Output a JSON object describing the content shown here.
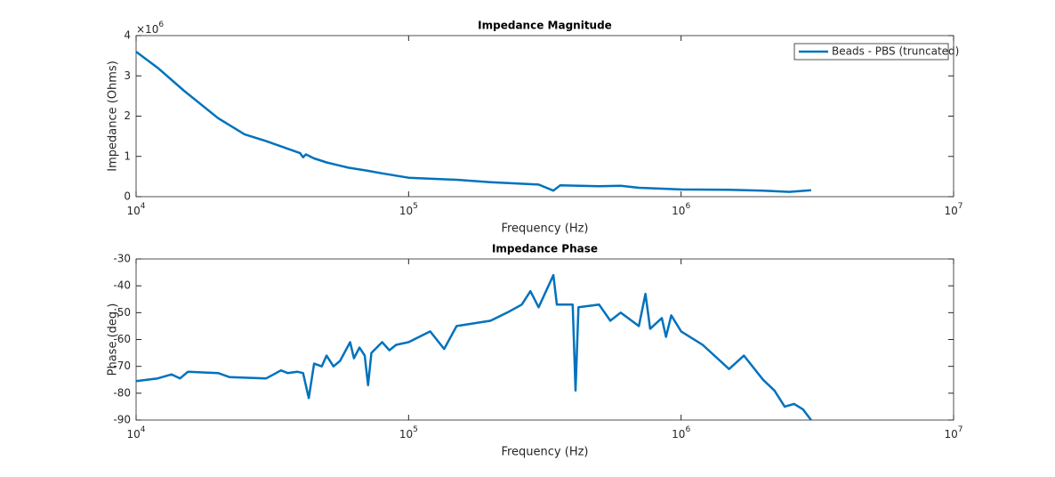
{
  "chart_data": [
    {
      "type": "line",
      "title": "Impedance Magnitude",
      "xlabel": "Frequency (Hz)",
      "ylabel": "Impedance (Ohms)",
      "y_exponent_label": "×10^6",
      "xscale": "log",
      "legend": "northeast",
      "x": [
        10000,
        12000,
        15000,
        20000,
        25000,
        30000,
        35000,
        40000,
        41000,
        42000,
        45000,
        50000,
        60000,
        70000,
        80000,
        100000,
        150000,
        200000,
        300000,
        340000,
        360000,
        500000,
        600000,
        700000,
        1000000,
        1500000,
        2000000,
        2500000,
        3000000
      ],
      "series": [
        {
          "name": "Beads - PBS (truncated)",
          "color": "#0072bd",
          "values": [
            3600000,
            3200000,
            2630000,
            1950000,
            1550000,
            1380000,
            1220000,
            1080000,
            980000,
            1050000,
            950000,
            850000,
            720000,
            650000,
            580000,
            470000,
            420000,
            360000,
            300000,
            150000,
            280000,
            260000,
            270000,
            220000,
            180000,
            170000,
            150000,
            120000,
            160000
          ]
        }
      ],
      "xlim": [
        10000,
        10000000
      ],
      "xticks": [
        {
          "value": 10000,
          "label": "10^4"
        },
        {
          "value": 100000,
          "label": "10^5"
        },
        {
          "value": 1000000,
          "label": "10^6"
        },
        {
          "value": 10000000,
          "label": "10^7"
        }
      ],
      "ylim": [
        0,
        4000000
      ],
      "yticks": [
        0,
        {
          "value": 1000000,
          "label": "1"
        },
        {
          "value": 2000000,
          "label": "2"
        },
        {
          "value": 3000000,
          "label": "3"
        },
        {
          "value": 4000000,
          "label": "4"
        }
      ]
    },
    {
      "type": "line",
      "title": "Impedance Phase",
      "xlabel": "Frequency (Hz)",
      "ylabel": "Phase (deg.)",
      "xscale": "log",
      "x": [
        10000,
        12000,
        13500,
        14500,
        15500,
        20000,
        22000,
        30000,
        32000,
        34000,
        36000,
        39000,
        41000,
        43000,
        45000,
        48000,
        50000,
        53000,
        56000,
        61000,
        63000,
        66000,
        69000,
        71000,
        73000,
        80000,
        85000,
        90000,
        100000,
        120000,
        135000,
        150000,
        200000,
        230000,
        260000,
        280000,
        300000,
        340000,
        350000,
        400000,
        410000,
        420000,
        500000,
        550000,
        600000,
        700000,
        740000,
        770000,
        850000,
        880000,
        920000,
        1000000,
        1200000,
        1500000,
        1700000,
        2000000,
        2200000,
        2400000,
        2600000,
        2800000,
        3000000
      ],
      "series": [
        {
          "color": "#0072bd",
          "values": [
            -75.5,
            -74.5,
            -73,
            -74.5,
            -72,
            -72.5,
            -74,
            -74.5,
            -73,
            -71.5,
            -72.5,
            -72,
            -72.5,
            -81.8,
            -69,
            -70,
            -66,
            -70,
            -68,
            -61,
            -67,
            -63,
            -66,
            -77,
            -65,
            -61,
            -64,
            -62,
            -61,
            -57,
            -63.5,
            -55,
            -53,
            -50,
            -47,
            -42,
            -48,
            -36,
            -47,
            -47,
            -79,
            -48,
            -47,
            -53,
            -50,
            -55,
            -43,
            -56,
            -52,
            -59,
            -51,
            -57,
            -62,
            -71,
            -66,
            -75,
            -79,
            -85,
            -84,
            -86,
            -90
          ]
        }
      ],
      "xlim": [
        10000,
        10000000
      ],
      "xticks": [
        {
          "value": 10000,
          "label": "10^4"
        },
        {
          "value": 100000,
          "label": "10^5"
        },
        {
          "value": 1000000,
          "label": "10^6"
        },
        {
          "value": 10000000,
          "label": "10^7"
        }
      ],
      "ylim": [
        -90,
        -30
      ],
      "yticks": [
        -90,
        -80,
        -70,
        -60,
        -50,
        -40,
        -30
      ]
    }
  ]
}
